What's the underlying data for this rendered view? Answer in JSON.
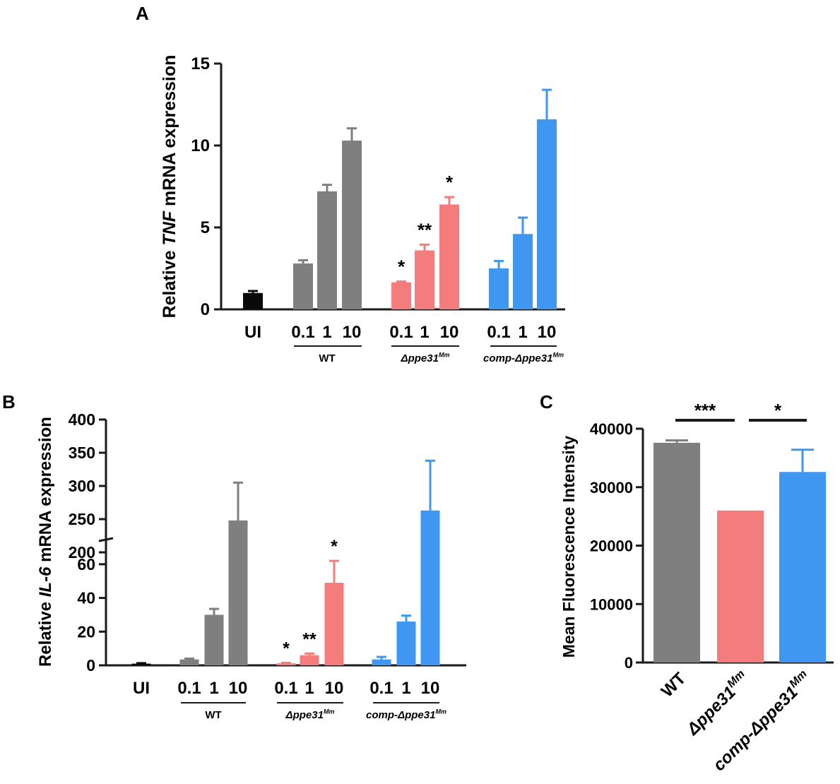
{
  "colors": {
    "ui": "#0a0a0a",
    "wt": "#7f7f7f",
    "mut": "#f47c7c",
    "comp": "#3f97f2",
    "axis": "#1a1a1a"
  },
  "chart_data": [
    {
      "panel": "A",
      "type": "bar",
      "ylabel_prefix": "Relative ",
      "ylabel_gene": "TNF",
      "ylabel_suffix": " mRNA expression",
      "ylim": [
        0,
        15
      ],
      "yticks": [
        "0",
        "5",
        "10",
        "15"
      ],
      "bars": [
        {
          "label": "UI",
          "group": "ui",
          "value": 1.0,
          "err": 0.12,
          "sig": ""
        },
        {
          "label": "0.1",
          "group": "wt",
          "value": 2.8,
          "err": 0.2,
          "sig": ""
        },
        {
          "label": "1",
          "group": "wt",
          "value": 7.2,
          "err": 0.4,
          "sig": ""
        },
        {
          "label": "10",
          "group": "wt",
          "value": 10.3,
          "err": 0.75,
          "sig": ""
        },
        {
          "label": "0.1",
          "group": "mut",
          "value": 1.65,
          "err": 0.05,
          "sig": "*"
        },
        {
          "label": "1",
          "group": "mut",
          "value": 3.6,
          "err": 0.35,
          "sig": "**"
        },
        {
          "label": "10",
          "group": "mut",
          "value": 6.4,
          "err": 0.45,
          "sig": "*"
        },
        {
          "label": "0.1",
          "group": "comp",
          "value": 2.5,
          "err": 0.45,
          "sig": ""
        },
        {
          "label": "1",
          "group": "comp",
          "value": 4.6,
          "err": 1.0,
          "sig": ""
        },
        {
          "label": "10",
          "group": "comp",
          "value": 11.6,
          "err": 1.8,
          "sig": ""
        }
      ],
      "groups": [
        {
          "name": "WT",
          "italic": false
        },
        {
          "name": "Δppe31",
          "sup": "Mm",
          "italic": true
        },
        {
          "name": "comp-Δppe31",
          "sup": "Mm",
          "italic": true
        }
      ]
    },
    {
      "panel": "B",
      "type": "bar",
      "broken_axis": true,
      "ylabel_prefix": "Relative ",
      "ylabel_gene": "IL-6",
      "ylabel_suffix": " mRNA expression",
      "lower_ylim": [
        0,
        70
      ],
      "upper_ylim": [
        200,
        400
      ],
      "lower_yticks": [
        "0",
        "20",
        "40",
        "60"
      ],
      "upper_yticks": [
        "200",
        "250",
        "300",
        "350",
        "400"
      ],
      "bars": [
        {
          "label": "UI",
          "group": "ui",
          "value": 1.0,
          "err": 0.3,
          "sig": ""
        },
        {
          "label": "0.1",
          "group": "wt",
          "value": 3.5,
          "err": 0.5,
          "sig": ""
        },
        {
          "label": "1",
          "group": "wt",
          "value": 30,
          "err": 3.5,
          "sig": ""
        },
        {
          "label": "10",
          "group": "wt",
          "value": 248,
          "err": 57,
          "sig": ""
        },
        {
          "label": "0.1",
          "group": "mut",
          "value": 1.2,
          "err": 0.3,
          "sig": "*"
        },
        {
          "label": "1",
          "group": "mut",
          "value": 6.0,
          "err": 1.0,
          "sig": "**"
        },
        {
          "label": "10",
          "group": "mut",
          "value": 49,
          "err": 13,
          "sig": "*"
        },
        {
          "label": "0.1",
          "group": "comp",
          "value": 3.5,
          "err": 1.5,
          "sig": ""
        },
        {
          "label": "1",
          "group": "comp",
          "value": 26,
          "err": 3.5,
          "sig": ""
        },
        {
          "label": "10",
          "group": "comp",
          "value": 263,
          "err": 75,
          "sig": ""
        }
      ],
      "groups": [
        {
          "name": "WT",
          "italic": false
        },
        {
          "name": "Δppe31",
          "sup": "Mm",
          "italic": true
        },
        {
          "name": "comp-Δppe31",
          "sup": "Mm",
          "italic": true
        }
      ]
    },
    {
      "panel": "C",
      "type": "bar",
      "ylabel": "Mean Fluorescence Intensity",
      "ylim": [
        0,
        40000
      ],
      "yticks": [
        "0",
        "10000",
        "20000",
        "30000",
        "40000"
      ],
      "bars": [
        {
          "label": "WT",
          "group": "wt",
          "value": 37600,
          "err": 400
        },
        {
          "label": "Δppe31",
          "sup": "Mm",
          "group": "mut",
          "value": 26000,
          "err": 0
        },
        {
          "label": "comp-Δppe31",
          "sup": "Mm",
          "group": "comp",
          "value": 32600,
          "err": 3800
        }
      ],
      "comparisons": [
        {
          "from": 0,
          "to": 1,
          "sig": "***"
        },
        {
          "from": 1,
          "to": 2,
          "sig": "*"
        }
      ]
    }
  ]
}
